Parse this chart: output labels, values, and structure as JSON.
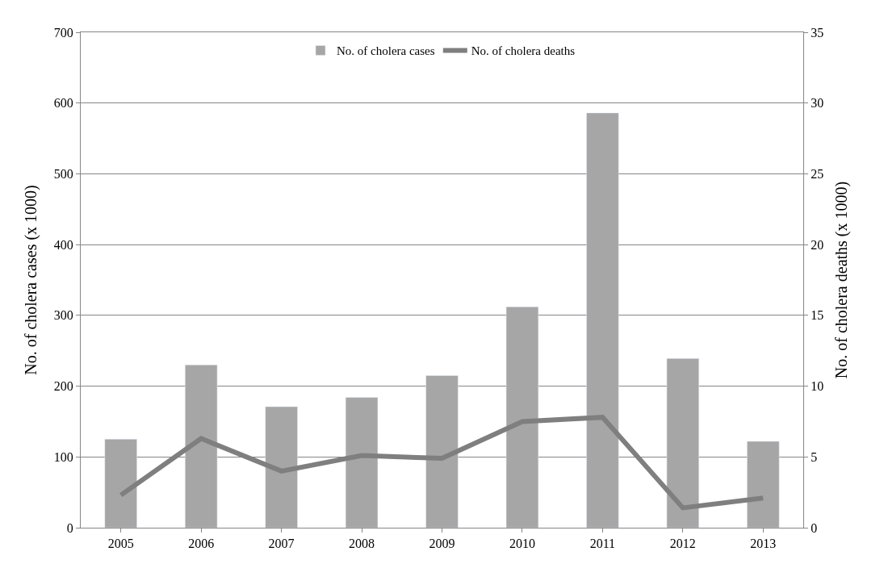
{
  "chart_data": {
    "type": "bar",
    "categories": [
      "2005",
      "2006",
      "2007",
      "2008",
      "2009",
      "2010",
      "2011",
      "2012",
      "2013"
    ],
    "series": [
      {
        "name": "No. of cholera cases",
        "color": "#a6a6a6",
        "values": [
          125,
          230,
          171,
          184,
          215,
          312,
          586,
          239,
          122
        ]
      },
      {
        "name": "No. of cholera deaths",
        "type": "line",
        "axis": "y2",
        "color": "#7f7f7f",
        "values": [
          2.3,
          6.3,
          4.0,
          5.1,
          4.9,
          7.5,
          7.8,
          1.4,
          2.1
        ]
      }
    ],
    "ylabel": "No. of cholera cases (x 1000)",
    "y2label": "No. of cholera deaths (x 1000)",
    "ylim": [
      0,
      700
    ],
    "yticks": [
      0,
      100,
      200,
      300,
      400,
      500,
      600,
      700
    ],
    "y2lim": [
      0,
      35
    ],
    "y2ticks": [
      0,
      5,
      10,
      15,
      20,
      25,
      30,
      35
    ],
    "grid": "y",
    "legend": "top",
    "marker": "none",
    "line_style": "solid"
  }
}
